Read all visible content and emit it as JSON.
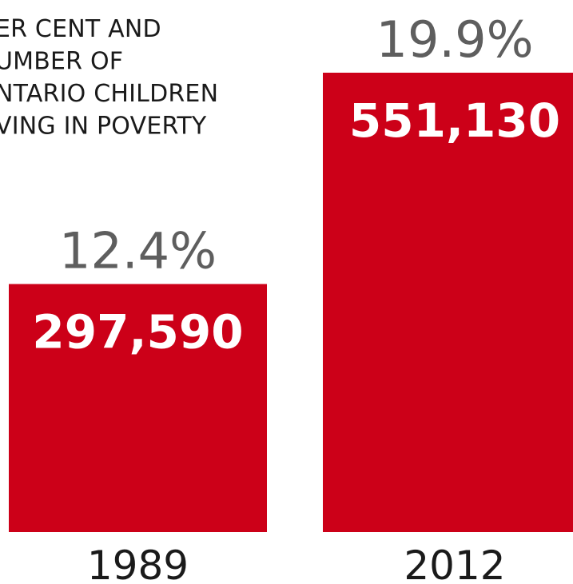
{
  "chart_data": {
    "type": "bar",
    "title": "PER CENT AND NUMBER OF ONTARIO CHILDREN LIVING IN POVERTY",
    "title_lines_visible": [
      "ER CENT AND",
      "UMBER OF",
      "NTARIO CHILDREN",
      "VING IN POVERTY"
    ],
    "categories": [
      "1989",
      "2012"
    ],
    "series": [
      {
        "values": [
          297590,
          551130
        ],
        "value_labels": [
          "297,590",
          "551,130"
        ]
      }
    ],
    "percent_labels": [
      "12.4%",
      "19.9%"
    ],
    "bar_color": "#cc0018",
    "ylim": [
      0,
      551130
    ],
    "grid": false,
    "legend": "none"
  }
}
